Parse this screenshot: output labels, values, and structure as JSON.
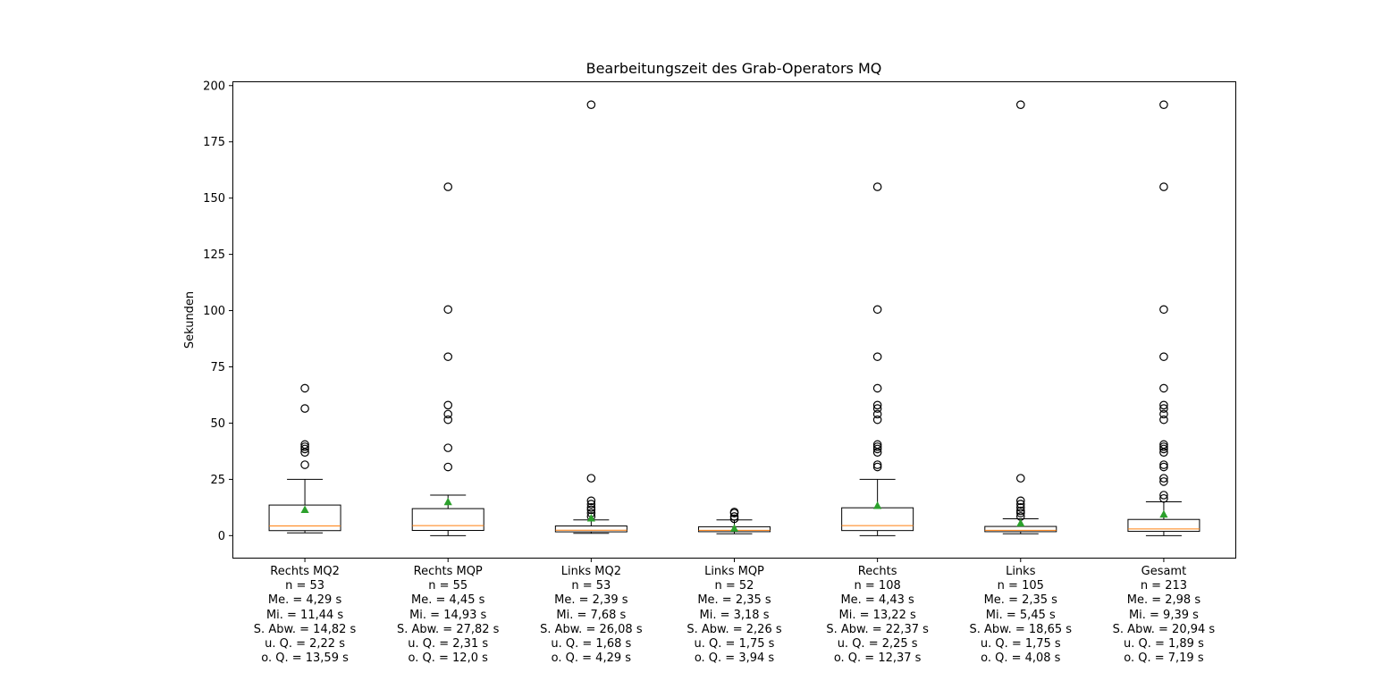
{
  "chart_data": {
    "type": "box",
    "title": "Bearbeitungszeit des Grab-Operators MQ",
    "ylabel": "Sekunden",
    "ylim": [
      -9.8,
      201.5
    ],
    "yticks": [
      0,
      25,
      50,
      75,
      100,
      125,
      150,
      175,
      200
    ],
    "grid": false,
    "colors": {
      "box": "#000000",
      "median": "#ff7f0e",
      "mean": "#2ca02c"
    },
    "categories": [
      {
        "label_lines": [
          "Rechts MQ2",
          "n = 53",
          "Me. = 4,29 s",
          "Mi. = 11,44 s",
          "S. Abw. = 14,82 s",
          "u. Q. = 2,22 s",
          "o. Q. = 13,59 s"
        ],
        "median": 4.29,
        "mean": 11.44,
        "q1": 2.22,
        "q3": 13.59,
        "whisker_low": 1.2,
        "whisker_high": 25.0,
        "outliers": [
          31.5,
          37.0,
          38.5,
          39.5,
          40.5,
          56.5,
          65.5
        ]
      },
      {
        "label_lines": [
          "Rechts MQP",
          "n = 55",
          "Me. = 4,45 s",
          "Mi. = 14,93 s",
          "S. Abw. = 27,82 s",
          "u. Q. = 2,31 s",
          "o. Q. = 12,0 s"
        ],
        "median": 4.45,
        "mean": 14.93,
        "q1": 2.31,
        "q3": 12.0,
        "whisker_low": 0.0,
        "whisker_high": 18.0,
        "outliers": [
          30.5,
          39.0,
          51.5,
          54.0,
          58.0,
          79.5,
          100.5,
          155.0
        ]
      },
      {
        "label_lines": [
          "Links MQ2",
          "n = 53",
          "Me. = 2,39 s",
          "Mi. = 7,68 s",
          "S. Abw. = 26,08 s",
          "u. Q. = 1,68 s",
          "o. Q. = 4,29 s"
        ],
        "median": 2.39,
        "mean": 7.68,
        "q1": 1.68,
        "q3": 4.29,
        "whisker_low": 1.0,
        "whisker_high": 7.0,
        "outliers": [
          8.5,
          10.0,
          11.5,
          12.5,
          14.0,
          15.5,
          25.5,
          191.5
        ]
      },
      {
        "label_lines": [
          "Links MQP",
          "n = 52",
          "Me. = 2,35 s",
          "Mi. = 3,18 s",
          "S. Abw. = 2,26 s",
          "u. Q. = 1,75 s",
          "o. Q. = 3,94 s"
        ],
        "median": 2.35,
        "mean": 3.18,
        "q1": 1.75,
        "q3": 3.94,
        "whisker_low": 0.8,
        "whisker_high": 7.0,
        "outliers": [
          7.5,
          8.5,
          10.0,
          10.5
        ]
      },
      {
        "label_lines": [
          "Rechts",
          "n = 108",
          "Me. = 4,43 s",
          "Mi. = 13,22 s",
          "S. Abw. = 22,37 s",
          "u. Q. = 2,25 s",
          "o. Q. = 12,37 s"
        ],
        "median": 4.43,
        "mean": 13.22,
        "q1": 2.25,
        "q3": 12.37,
        "whisker_low": 0.0,
        "whisker_high": 25.0,
        "outliers": [
          30.5,
          31.5,
          37.0,
          38.5,
          39.5,
          40.5,
          51.5,
          54.0,
          56.5,
          58.0,
          65.5,
          79.5,
          100.5,
          155.0
        ]
      },
      {
        "label_lines": [
          "Links",
          "n = 105",
          "Me. = 2,35 s",
          "Mi. = 5,45 s",
          "S. Abw. = 18,65 s",
          "u. Q. = 1,75 s",
          "o. Q. = 4,08 s"
        ],
        "median": 2.35,
        "mean": 5.45,
        "q1": 1.75,
        "q3": 4.08,
        "whisker_low": 0.8,
        "whisker_high": 7.5,
        "outliers": [
          8.5,
          10.0,
          11.0,
          12.5,
          14.0,
          15.5,
          25.5,
          191.5
        ]
      },
      {
        "label_lines": [
          "Gesamt",
          "n = 213",
          "Me. = 2,98 s",
          "Mi. = 9,39 s",
          "S. Abw. = 20,94 s",
          "u. Q. = 1,89 s",
          "o. Q. = 7,19 s"
        ],
        "median": 2.98,
        "mean": 9.39,
        "q1": 1.89,
        "q3": 7.19,
        "whisker_low": 0.0,
        "whisker_high": 15.0,
        "outliers": [
          16.5,
          18.0,
          24.0,
          25.5,
          30.5,
          31.5,
          37.0,
          38.5,
          39.5,
          40.5,
          51.5,
          54.0,
          56.5,
          58.0,
          65.5,
          79.5,
          100.5,
          155.0,
          191.5
        ]
      }
    ]
  }
}
